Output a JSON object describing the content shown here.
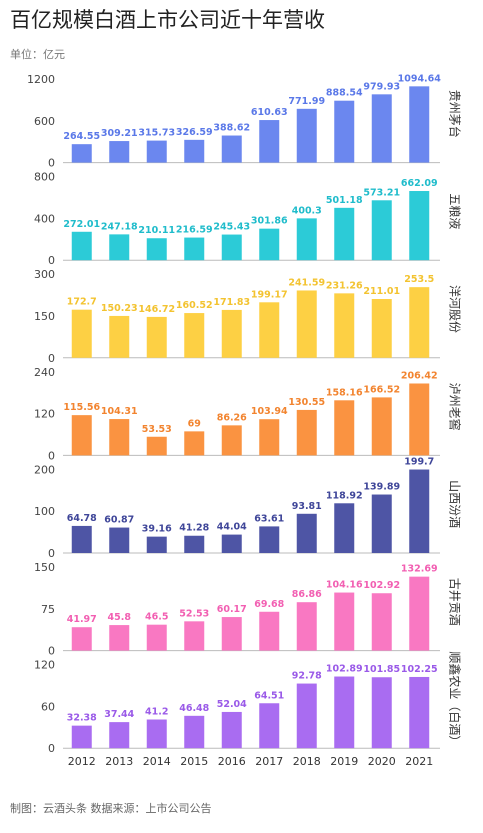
{
  "title": "百亿规模白酒上市公司近十年营收",
  "unit": "单位：亿元",
  "footer": "制图：云酒头条  数据来源：上市公司公告",
  "chart_data": {
    "type": "bar",
    "categories": [
      "2012",
      "2013",
      "2014",
      "2015",
      "2016",
      "2017",
      "2018",
      "2019",
      "2020",
      "2021"
    ],
    "panels": [
      {
        "name": "贵州茅台",
        "color": "#6b87ef",
        "label_color": "#5a78e8",
        "ylim": [
          0,
          1200
        ],
        "yticks": [
          0,
          600,
          1200
        ],
        "values": [
          264.55,
          309.21,
          315.73,
          326.59,
          388.62,
          610.63,
          771.99,
          888.54,
          979.93,
          1094.64
        ],
        "labels": [
          "264.55",
          "309.21",
          "315.73",
          "326.59",
          "388.62",
          "610.63",
          "771.99",
          "888.54",
          "979.93",
          "1094.64"
        ]
      },
      {
        "name": "五粮液",
        "color": "#2ccbd7",
        "label_color": "#1fbccb",
        "ylim": [
          0,
          800
        ],
        "yticks": [
          0,
          400,
          800
        ],
        "values": [
          272.01,
          247.18,
          210.11,
          216.59,
          245.43,
          301.86,
          400.3,
          501.18,
          573.21,
          662.09
        ],
        "labels": [
          "272.01",
          "247.18",
          "210.11",
          "216.59",
          "245.43",
          "301.86",
          "400.3",
          "501.18",
          "573.21",
          "662.09"
        ]
      },
      {
        "name": "洋河股份",
        "color": "#fdd044",
        "label_color": "#f3c330",
        "ylim": [
          0,
          300
        ],
        "yticks": [
          0,
          150,
          300
        ],
        "values": [
          172.7,
          150.23,
          146.72,
          160.52,
          171.83,
          199.17,
          241.59,
          231.26,
          211.01,
          253.5
        ],
        "labels": [
          "172.7",
          "150.23",
          "146.72",
          "160.52",
          "171.83",
          "199.17",
          "241.59",
          "231.26",
          "211.01",
          "253.5"
        ]
      },
      {
        "name": "泸州老窖",
        "color": "#fa9341",
        "label_color": "#f2842f",
        "ylim": [
          0,
          240
        ],
        "yticks": [
          0,
          120,
          240
        ],
        "values": [
          115.56,
          104.31,
          53.53,
          69,
          86.26,
          103.94,
          130.55,
          158.16,
          166.52,
          206.42
        ],
        "labels": [
          "115.56",
          "104.31",
          "53.53",
          "69",
          "86.26",
          "103.94",
          "130.55",
          "158.16",
          "166.52",
          "206.42"
        ]
      },
      {
        "name": "山西汾酒",
        "color": "#4e55a5",
        "label_color": "#3f4699",
        "ylim": [
          0,
          200
        ],
        "yticks": [
          0,
          100,
          200
        ],
        "values": [
          64.78,
          60.87,
          39.16,
          41.28,
          44.04,
          63.61,
          93.81,
          118.92,
          139.89,
          199.7
        ],
        "labels": [
          "64.78",
          "60.87",
          "39.16",
          "41.28",
          "44.04",
          "63.61",
          "93.81",
          "118.92",
          "139.89",
          "199.7"
        ]
      },
      {
        "name": "古井贡酒",
        "color": "#f978c2",
        "label_color": "#f25fb2",
        "ylim": [
          0,
          150
        ],
        "yticks": [
          0,
          75,
          150
        ],
        "values": [
          41.97,
          45.8,
          46.5,
          52.53,
          60.17,
          69.68,
          86.86,
          104.16,
          102.92,
          132.69
        ],
        "labels": [
          "41.97",
          "45.8",
          "46.5",
          "52.53",
          "60.17",
          "69.68",
          "86.86",
          "104.16",
          "102.92",
          "132.69"
        ]
      },
      {
        "name": "顺鑫农业（白酒）",
        "color": "#a96cf1",
        "label_color": "#9a5ae8",
        "ylim": [
          0,
          120
        ],
        "yticks": [
          0,
          60,
          120
        ],
        "values": [
          32.38,
          37.44,
          41.2,
          46.48,
          52.04,
          64.51,
          92.78,
          102.89,
          101.85,
          102.25
        ],
        "labels": [
          "32.38",
          "37.44",
          "41.2",
          "46.48",
          "52.04",
          "64.51",
          "92.78",
          "102.89",
          "101.85",
          "102.25"
        ]
      }
    ]
  }
}
